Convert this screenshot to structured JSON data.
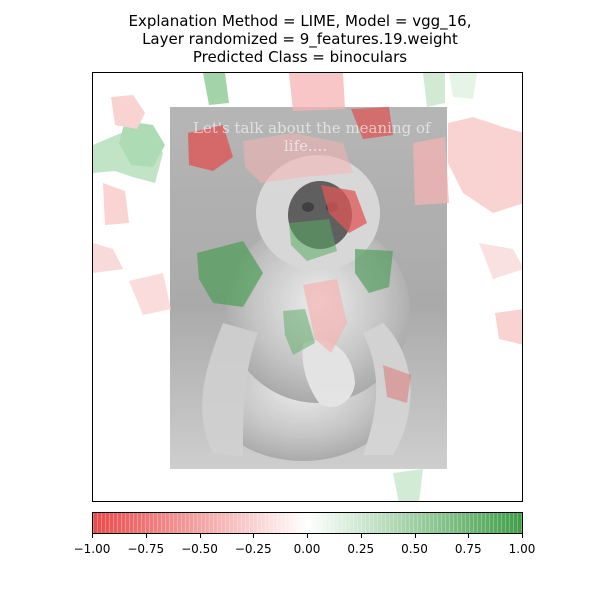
{
  "title": {
    "line1": "Explanation Method = LIME, Model = vgg_16,",
    "line2": "Layer randomized = 9_features.19.weight",
    "line3": "Predicted Class = binoculars"
  },
  "image": {
    "caption_line1": "Let's talk about the meaning of",
    "caption_line2": "life....",
    "subject": "gibbon photo with LIME superpixel overlay"
  },
  "colorbar": {
    "min": -1.0,
    "max": 1.0,
    "negative_color": "#e53935",
    "positive_color": "#43a047",
    "ticks": [
      "−1.00",
      "−0.75",
      "−0.50",
      "−0.25",
      "0.00",
      "0.25",
      "0.50",
      "0.75",
      "1.00"
    ]
  },
  "colors": {
    "red_strong": "#d83a3a",
    "red_light": "#f4a6a6",
    "green_strong": "#2e8b3a",
    "green_light": "#9fd3a6"
  }
}
